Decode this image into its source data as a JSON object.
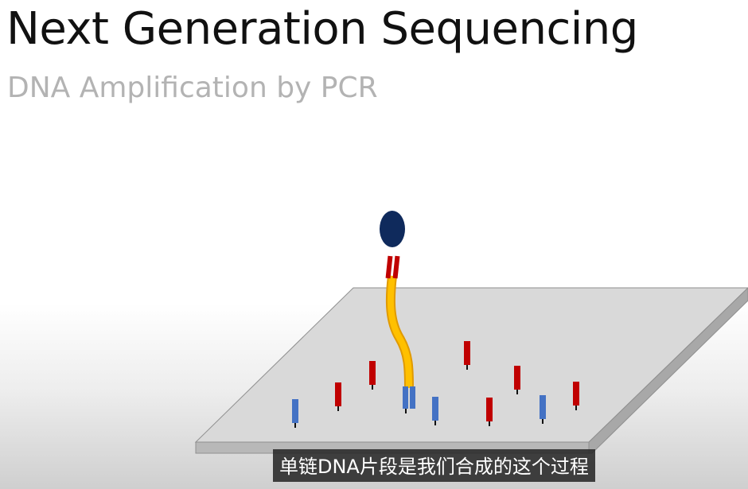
{
  "slide": {
    "title": "Next Generation Sequencing",
    "subtitle": "DNA Amplification by PCR"
  },
  "caption": {
    "text": "单链DNA片段是我们合成的这个过程"
  },
  "colors": {
    "plate_top": "#d9d9d9",
    "plate_edge": "#a8a8a8",
    "primer_red": "#c00000",
    "primer_blue": "#4472c4",
    "strand_yellow": "#ffc000",
    "bead_navy": "#0f2a5c"
  },
  "diagram": {
    "primer_counts": {
      "red": 7,
      "blue": 4
    },
    "bound_strand": "single-stranded DNA fragment attached to a blue surface primer, red adapter end and navy bead at the top"
  }
}
